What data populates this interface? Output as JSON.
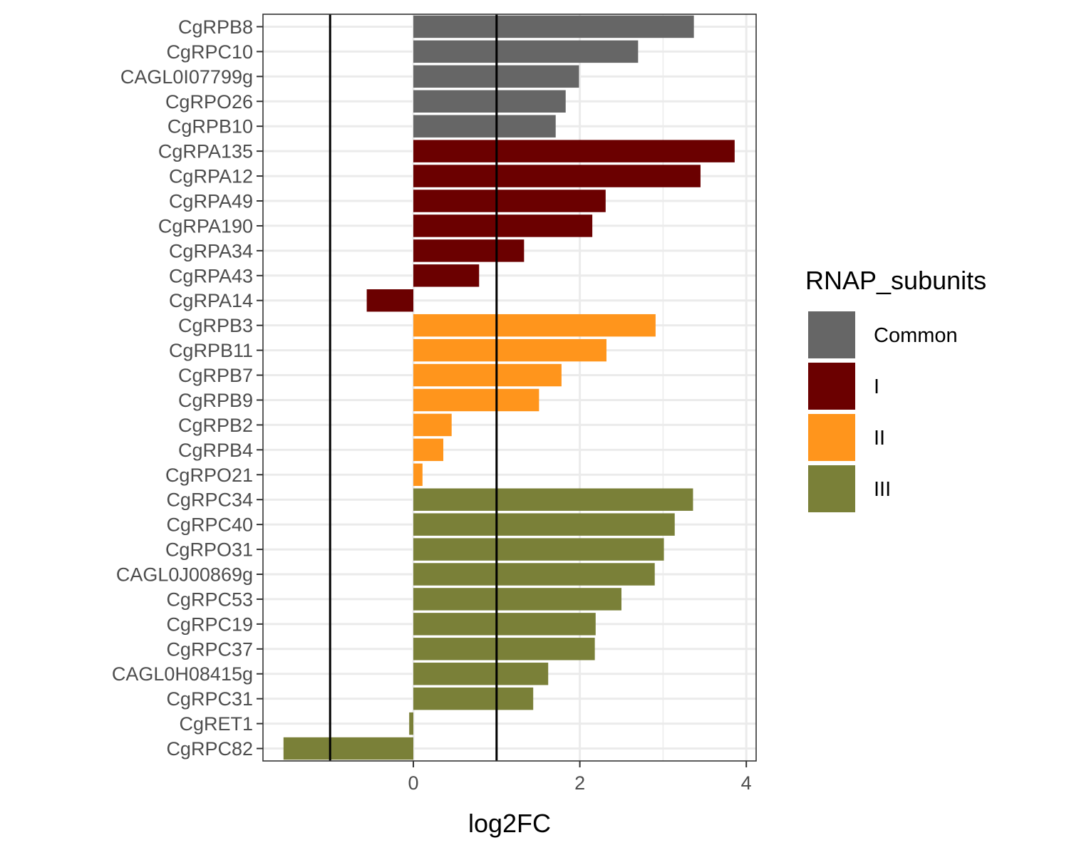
{
  "chart_data": {
    "type": "bar",
    "orientation": "horizontal",
    "xlabel": "log2FC",
    "ylabel": "",
    "xlim": [
      -1.8,
      4.1
    ],
    "xticks": [
      0,
      2,
      4
    ],
    "reference_lines": [
      -1,
      1
    ],
    "grid": true,
    "legend": {
      "title": "RNAP_subunits",
      "position": "right",
      "entries": [
        {
          "label": "Common",
          "color": "#666666"
        },
        {
          "label": "I",
          "color": "#6b0000"
        },
        {
          "label": "II",
          "color": "#ff951c"
        },
        {
          "label": "III",
          "color": "#7a8038"
        }
      ]
    },
    "bars": [
      {
        "gene": "CgRPB8",
        "value": 3.37,
        "group": "Common"
      },
      {
        "gene": "CgRPC10",
        "value": 2.7,
        "group": "Common"
      },
      {
        "gene": "CAGL0I07799g",
        "value": 1.99,
        "group": "Common"
      },
      {
        "gene": "CgRPO26",
        "value": 1.83,
        "group": "Common"
      },
      {
        "gene": "CgRPB10",
        "value": 1.71,
        "group": "Common"
      },
      {
        "gene": "CgRPA135",
        "value": 3.86,
        "group": "I"
      },
      {
        "gene": "CgRPA12",
        "value": 3.45,
        "group": "I"
      },
      {
        "gene": "CgRPA49",
        "value": 2.31,
        "group": "I"
      },
      {
        "gene": "CgRPA190",
        "value": 2.15,
        "group": "I"
      },
      {
        "gene": "CgRPA34",
        "value": 1.33,
        "group": "I"
      },
      {
        "gene": "CgRPA43",
        "value": 0.79,
        "group": "I"
      },
      {
        "gene": "CgRPA14",
        "value": -0.56,
        "group": "I"
      },
      {
        "gene": "CgRPB3",
        "value": 2.91,
        "group": "II"
      },
      {
        "gene": "CgRPB11",
        "value": 2.32,
        "group": "II"
      },
      {
        "gene": "CgRPB7",
        "value": 1.78,
        "group": "II"
      },
      {
        "gene": "CgRPB9",
        "value": 1.51,
        "group": "II"
      },
      {
        "gene": "CgRPB2",
        "value": 0.46,
        "group": "II"
      },
      {
        "gene": "CgRPB4",
        "value": 0.36,
        "group": "II"
      },
      {
        "gene": "CgRPO21",
        "value": 0.11,
        "group": "II"
      },
      {
        "gene": "CgRPC34",
        "value": 3.36,
        "group": "III"
      },
      {
        "gene": "CgRPC40",
        "value": 3.14,
        "group": "III"
      },
      {
        "gene": "CgRPO31",
        "value": 3.01,
        "group": "III"
      },
      {
        "gene": "CAGL0J00869g",
        "value": 2.9,
        "group": "III"
      },
      {
        "gene": "CgRPC53",
        "value": 2.5,
        "group": "III"
      },
      {
        "gene": "CgRPC19",
        "value": 2.19,
        "group": "III"
      },
      {
        "gene": "CgRPC37",
        "value": 2.18,
        "group": "III"
      },
      {
        "gene": "CAGL0H08415g",
        "value": 1.62,
        "group": "III"
      },
      {
        "gene": "CgRPC31",
        "value": 1.44,
        "group": "III"
      },
      {
        "gene": "CgRET1",
        "value": -0.05,
        "group": "III"
      },
      {
        "gene": "CgRPC82",
        "value": -1.56,
        "group": "III"
      }
    ]
  }
}
